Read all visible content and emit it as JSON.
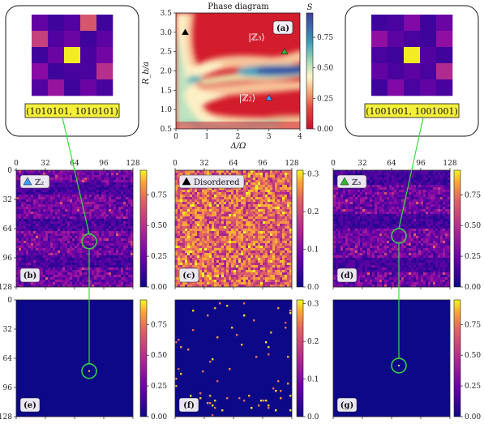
{
  "chart_data": [
    {
      "id": "a",
      "type": "heatmap",
      "title": "Phase diagram",
      "panel_label": "(a)",
      "xlabel": "Δ/Ω",
      "ylabel": "R_b/a",
      "xlim": [
        0,
        4
      ],
      "ylim": [
        0.5,
        3.5
      ],
      "xticks": [
        "0",
        "1",
        "2",
        "3",
        "4"
      ],
      "yticks": [
        "0.5",
        "1.0",
        "1.5",
        "2.0",
        "2.5",
        "3.0",
        "3.5"
      ],
      "colorbar": {
        "label": "S",
        "ticks": [
          "0.00",
          "0.25",
          "0.50",
          "0.75"
        ],
        "range": [
          0,
          0.95
        ]
      },
      "annotations": [
        {
          "text": "|ℤ₃⟩",
          "x": 2.6,
          "y": 2.8
        },
        {
          "text": "|ℤ₂⟩",
          "x": 2.3,
          "y": 1.22
        }
      ],
      "markers": [
        {
          "phase": "Disordered",
          "x": 0.3,
          "y": 3.0,
          "color": "#000000"
        },
        {
          "phase": "Z2",
          "x": 3.0,
          "y": 1.3,
          "color": "#3b9cff"
        },
        {
          "phase": "Z3",
          "x": 3.5,
          "y": 2.5,
          "color": "#2fb52f"
        }
      ]
    },
    {
      "id": "b",
      "type": "heatmap",
      "panel_label": "(b)",
      "legend": "ℤ₂",
      "marker_color": "#3b9cff",
      "pattern": "stripes",
      "xticks": [
        "0",
        "32",
        "64",
        "96",
        "128"
      ],
      "yticks": [
        "0",
        "32",
        "64",
        "96",
        "128"
      ],
      "colorbar_ticks": [
        "0.00",
        "0.25",
        "0.50",
        "0.75"
      ],
      "colorbar_max": 0.95,
      "circle": [
        80,
        78
      ]
    },
    {
      "id": "c",
      "type": "heatmap",
      "panel_label": "(c)",
      "legend": "Disordered",
      "marker_color": "#000000",
      "pattern": "noise",
      "xticks": [
        "0",
        "32",
        "64",
        "96",
        "128"
      ],
      "colorbar_ticks": [
        "0.0",
        "0.1",
        "0.2",
        "0.3"
      ],
      "colorbar_max": 0.31
    },
    {
      "id": "d",
      "type": "heatmap",
      "panel_label": "(d)",
      "legend": "ℤ₃",
      "marker_color": "#2fb52f",
      "pattern": "stripes3",
      "xticks": [
        "0",
        "32",
        "64",
        "96",
        "128"
      ],
      "colorbar_ticks": [
        "0.00",
        "0.25",
        "0.50",
        "0.75"
      ],
      "colorbar_max": 0.95,
      "circle": [
        72,
        72
      ]
    },
    {
      "id": "e",
      "type": "heatmap",
      "panel_label": "(e)",
      "pattern": "single",
      "yticks": [
        "0",
        "32",
        "64",
        "96",
        "128"
      ],
      "colorbar_ticks": [
        "0.00",
        "0.25",
        "0.50",
        "0.75"
      ],
      "colorbar_max": 0.95,
      "circle": [
        80,
        78
      ]
    },
    {
      "id": "f",
      "type": "heatmap",
      "panel_label": "(f)",
      "pattern": "sparse",
      "colorbar_ticks": [
        "0.0",
        "0.1",
        "0.2",
        "0.3"
      ],
      "colorbar_max": 0.31
    },
    {
      "id": "g",
      "type": "heatmap",
      "panel_label": "(g)",
      "pattern": "single",
      "colorbar_ticks": [
        "0.00",
        "0.25",
        "0.50",
        "0.75"
      ],
      "colorbar_max": 0.95,
      "circle": [
        72,
        72
      ]
    }
  ],
  "insets": [
    {
      "id": "left",
      "label": "(1010101, 1010101)",
      "grid": [
        [
          0.18,
          0.1,
          0.14,
          0.55,
          0.1
        ],
        [
          0.48,
          0.14,
          0.2,
          0.1,
          0.16
        ],
        [
          0.1,
          0.2,
          0.97,
          0.12,
          0.22
        ],
        [
          0.28,
          0.1,
          0.12,
          0.12,
          0.42
        ],
        [
          0.14,
          0.32,
          0.1,
          0.2,
          0.12
        ]
      ]
    },
    {
      "id": "right",
      "label": "(1001001, 1001001)",
      "grid": [
        [
          0.1,
          0.12,
          0.26,
          0.1,
          0.2
        ],
        [
          0.3,
          0.16,
          0.12,
          0.1,
          0.3
        ],
        [
          0.12,
          0.1,
          0.97,
          0.14,
          0.1
        ],
        [
          0.18,
          0.12,
          0.16,
          0.12,
          0.4
        ],
        [
          0.1,
          0.26,
          0.12,
          0.18,
          0.12
        ]
      ]
    }
  ]
}
